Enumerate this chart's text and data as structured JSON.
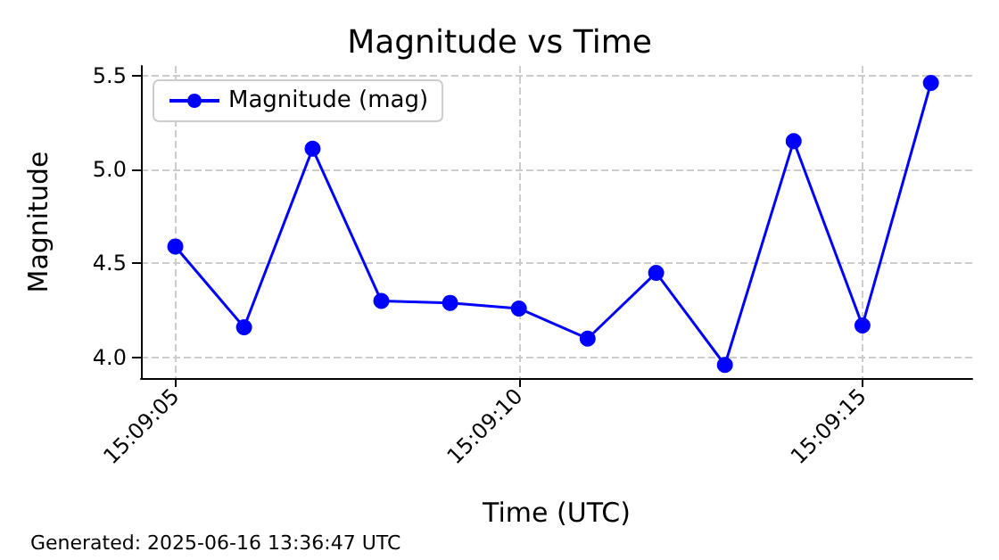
{
  "chart_data": {
    "type": "line",
    "title": "Magnitude vs Time",
    "xlabel": "Time (UTC)",
    "ylabel": "Magnitude",
    "annotations": [
      "Generated: 2025-06-16 13:36:47 UTC"
    ],
    "x": [
      15.151389,
      15.151667,
      15.151944,
      15.152222,
      15.1525,
      15.152778,
      15.153056,
      15.153333,
      15.153611,
      15.153889,
      15.154167,
      15.154444
    ],
    "series": [
      {
        "name": "Magnitude (mag)",
        "color": "#0000ff",
        "values": [
          4.59,
          4.16,
          5.11,
          4.3,
          4.29,
          4.26,
          4.1,
          4.45,
          3.96,
          5.15,
          4.17,
          5.46
        ]
      }
    ],
    "xlim": [
      15.15125,
      15.154611
    ],
    "xticks": [
      {
        "value": 15.151389,
        "label": "15:09:05"
      },
      {
        "value": 15.152778,
        "label": "15:09:10"
      },
      {
        "value": 15.154167,
        "label": "15:09:15"
      }
    ],
    "ylim": [
      3.89,
      5.55
    ],
    "yticks": [
      {
        "value": 4,
        "label": "4.0"
      },
      4.5,
      {
        "value": 5,
        "label": "5.0"
      },
      5.5
    ],
    "grid": true,
    "legend": "top left",
    "marker": "circle",
    "line_style": "solid"
  }
}
